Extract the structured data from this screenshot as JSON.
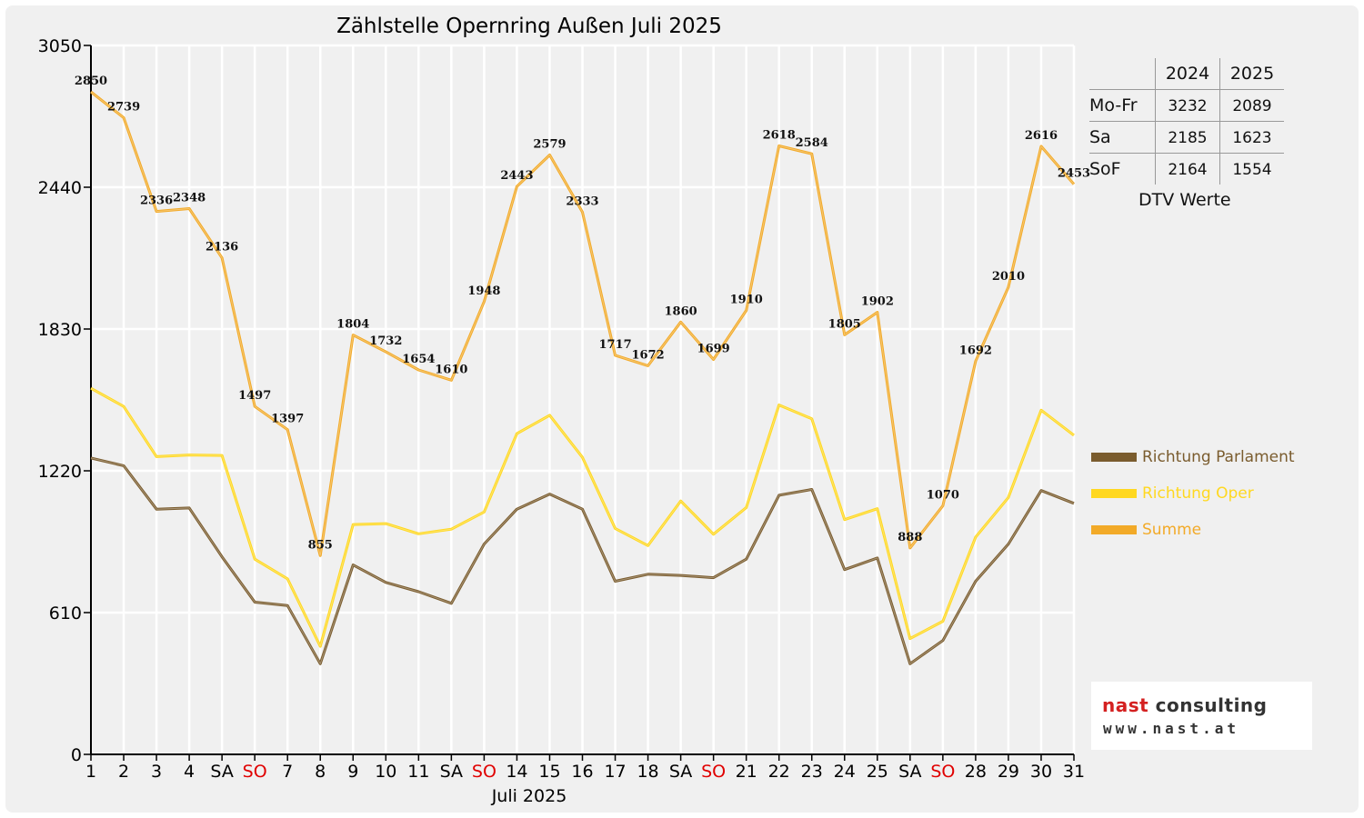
{
  "chart_data": {
    "type": "line",
    "title": "Zählstelle Opernring Außen Juli 2025",
    "xlabel": "Juli 2025",
    "ylabel": "",
    "ylim": [
      0,
      3050
    ],
    "yticks": [
      0,
      610,
      1220,
      1830,
      2440,
      3050
    ],
    "categories": [
      "1",
      "2",
      "3",
      "4",
      "SA",
      "SO",
      "7",
      "8",
      "9",
      "10",
      "11",
      "SA",
      "SO",
      "14",
      "15",
      "16",
      "17",
      "18",
      "SA",
      "SO",
      "21",
      "22",
      "23",
      "24",
      "25",
      "SA",
      "SO",
      "28",
      "29",
      "30",
      "31"
    ],
    "weekend_color": "#e00000",
    "grid": true,
    "series": [
      {
        "name": "Richtung Parlament",
        "color": "#7a5c2e",
        "values": [
          1275,
          1242,
          1055,
          1060,
          850,
          655,
          640,
          390,
          815,
          740,
          700,
          650,
          905,
          1055,
          1120,
          1055,
          745,
          775,
          770,
          760,
          840,
          1115,
          1140,
          795,
          845,
          390,
          490,
          745,
          905,
          1135,
          1080
        ]
      },
      {
        "name": "Richtung Oper",
        "color": "#ffd820",
        "values": [
          1575,
          1497,
          1281,
          1288,
          1286,
          840,
          755,
          465,
          989,
          993,
          949,
          969,
          1043,
          1380,
          1459,
          1278,
          972,
          898,
          1090,
          947,
          1062,
          1503,
          1444,
          1010,
          1057,
          498,
          573,
          935,
          1105,
          1481,
          1373
        ]
      },
      {
        "name": "Summe",
        "color": "#f2aa28",
        "values": [
          2850,
          2739,
          2336,
          2348,
          2136,
          1497,
          1397,
          855,
          1804,
          1732,
          1654,
          1610,
          1948,
          2443,
          2579,
          2333,
          1717,
          1672,
          1860,
          1699,
          1910,
          2618,
          2584,
          1805,
          1902,
          888,
          1070,
          1692,
          2010,
          2616,
          2453
        ],
        "labels": [
          "2850",
          "2739",
          "2336",
          "2348",
          "2136",
          "1497",
          "1397",
          "855",
          "1804",
          "1732",
          "1654",
          "1610",
          "1948",
          "2443",
          "2579",
          "2333",
          "1717",
          "1672",
          "1860",
          "1699",
          "1910",
          "2618",
          "2584",
          "1805",
          "1902",
          "888",
          "1070",
          "1692",
          "2010",
          "2616",
          "2453"
        ]
      }
    ]
  },
  "dtv_table": {
    "years": [
      "2024",
      "2025"
    ],
    "rows": [
      {
        "label": "Mo-Fr",
        "v2024": "3232",
        "v2025": "2089"
      },
      {
        "label": "Sa",
        "v2024": "2185",
        "v2025": "1623"
      },
      {
        "label": "SoF",
        "v2024": "2164",
        "v2025": "1554"
      }
    ],
    "caption": "DTV Werte"
  },
  "legend": {
    "items": [
      {
        "label": "Richtung Parlament",
        "color": "#7a5c2e"
      },
      {
        "label": "Richtung Oper",
        "color": "#ffd820"
      },
      {
        "label": "Summe",
        "color": "#f2aa28"
      }
    ]
  },
  "logo": {
    "brand_part1": "nast",
    "brand_part2": "consulting",
    "url": "www.nast.at"
  }
}
